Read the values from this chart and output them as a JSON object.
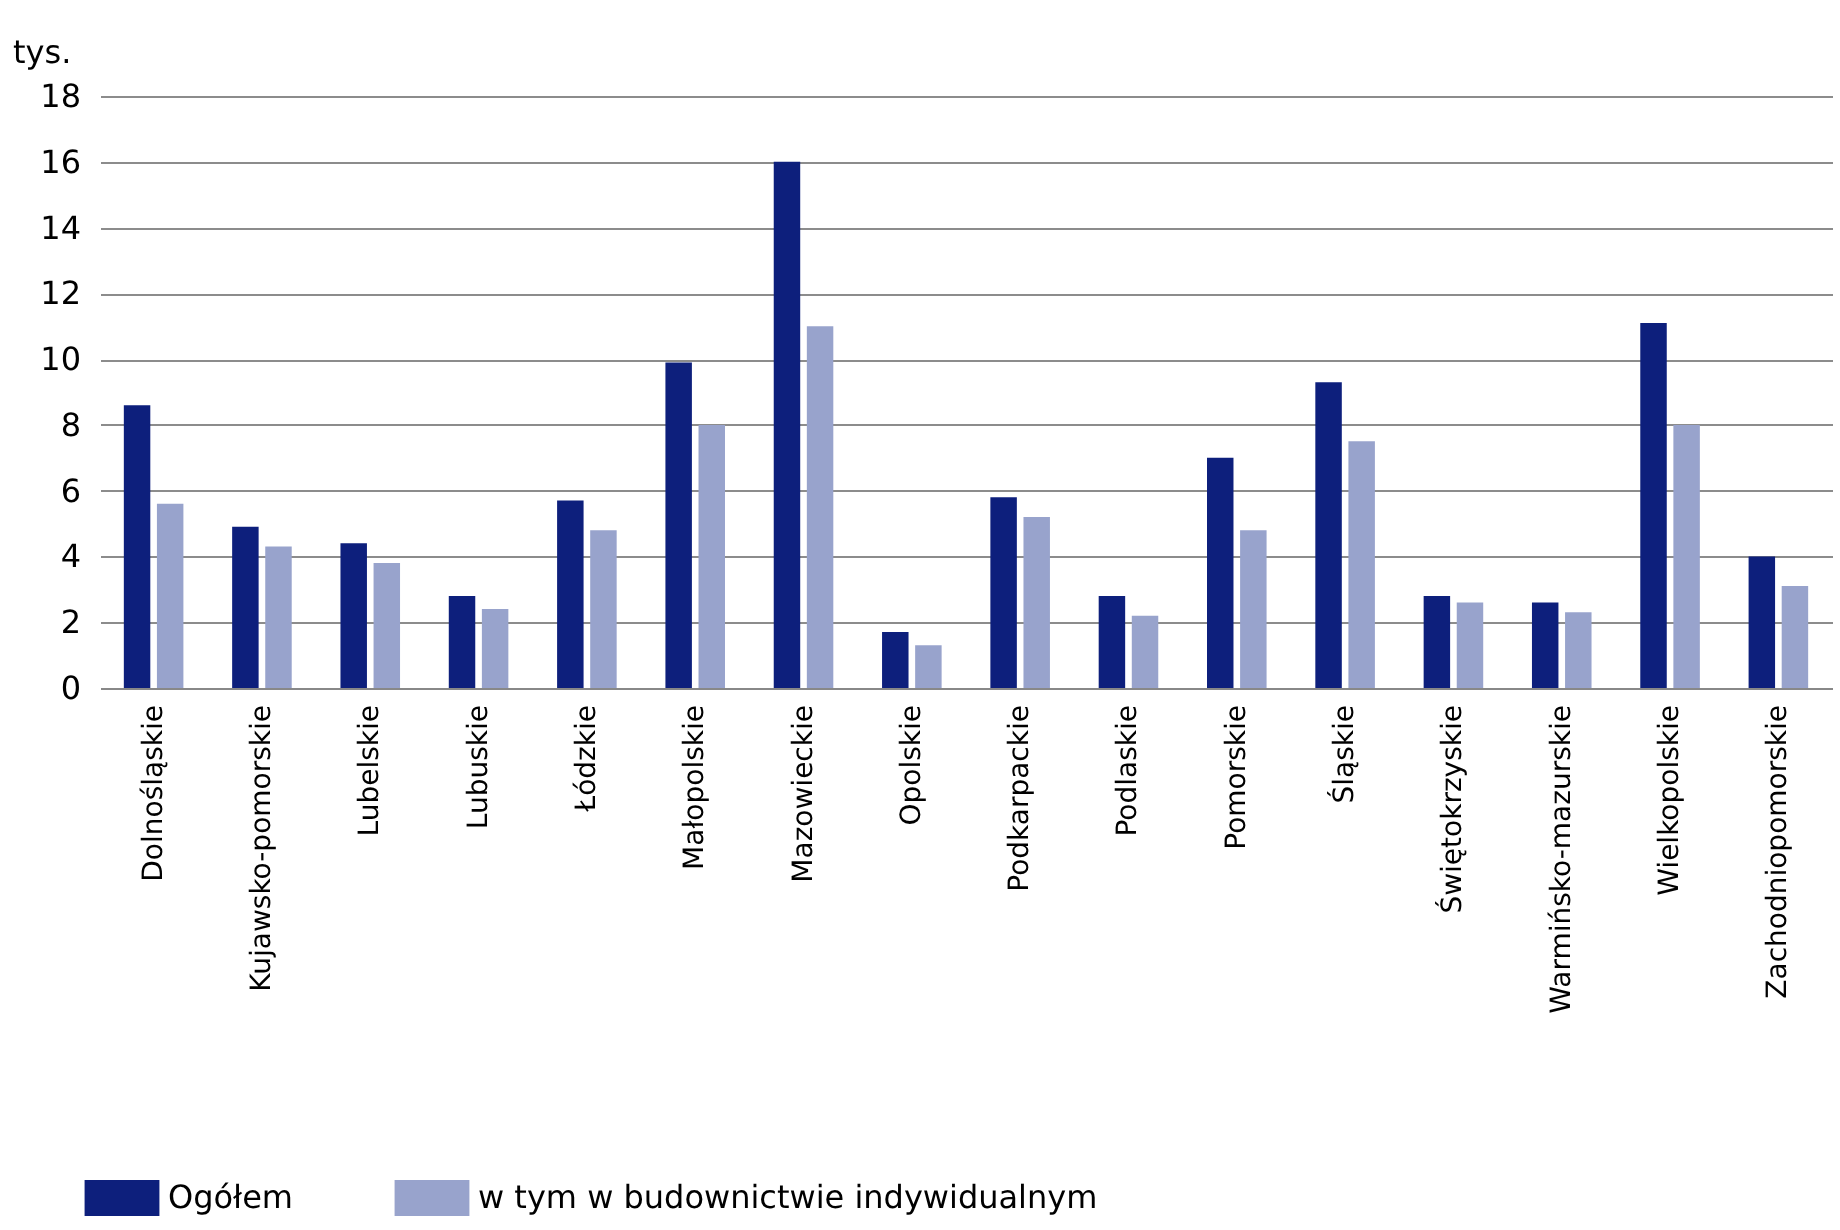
{
  "chart_data": {
    "type": "bar",
    "ylabel": "tys.",
    "categories": [
      "Dolnośląskie",
      "Kujawsko-pomorskie",
      "Lubelskie",
      "Lubuskie",
      "Łódzkie",
      "Małopolskie",
      "Mazowieckie",
      "Opolskie",
      "Podkarpackie",
      "Podlaskie",
      "Pomorskie",
      "Śląskie",
      "Świętokrzyskie",
      "Warmińsko-mazurskie",
      "Wielkopolskie",
      "Zachodniopomorskie"
    ],
    "series": [
      {
        "name": "Ogółem",
        "color": "#0d1f7c",
        "values": [
          8.6,
          4.9,
          4.4,
          2.8,
          5.7,
          9.9,
          16.0,
          1.7,
          5.8,
          2.8,
          7.0,
          9.3,
          2.8,
          2.6,
          11.1,
          4.0
        ]
      },
      {
        "name": "w tym w budownictwie indywidualnym",
        "color": "#98a3cc",
        "values": [
          5.6,
          4.3,
          3.8,
          2.4,
          4.8,
          8.0,
          11.0,
          1.3,
          5.2,
          2.2,
          4.8,
          7.5,
          2.6,
          2.3,
          8.0,
          3.1
        ]
      }
    ],
    "ylim": [
      0,
      18
    ],
    "yticks": [
      0,
      2,
      4,
      6,
      8,
      10,
      12,
      14,
      16,
      18
    ],
    "grid": "y",
    "legend": "bottom left"
  }
}
